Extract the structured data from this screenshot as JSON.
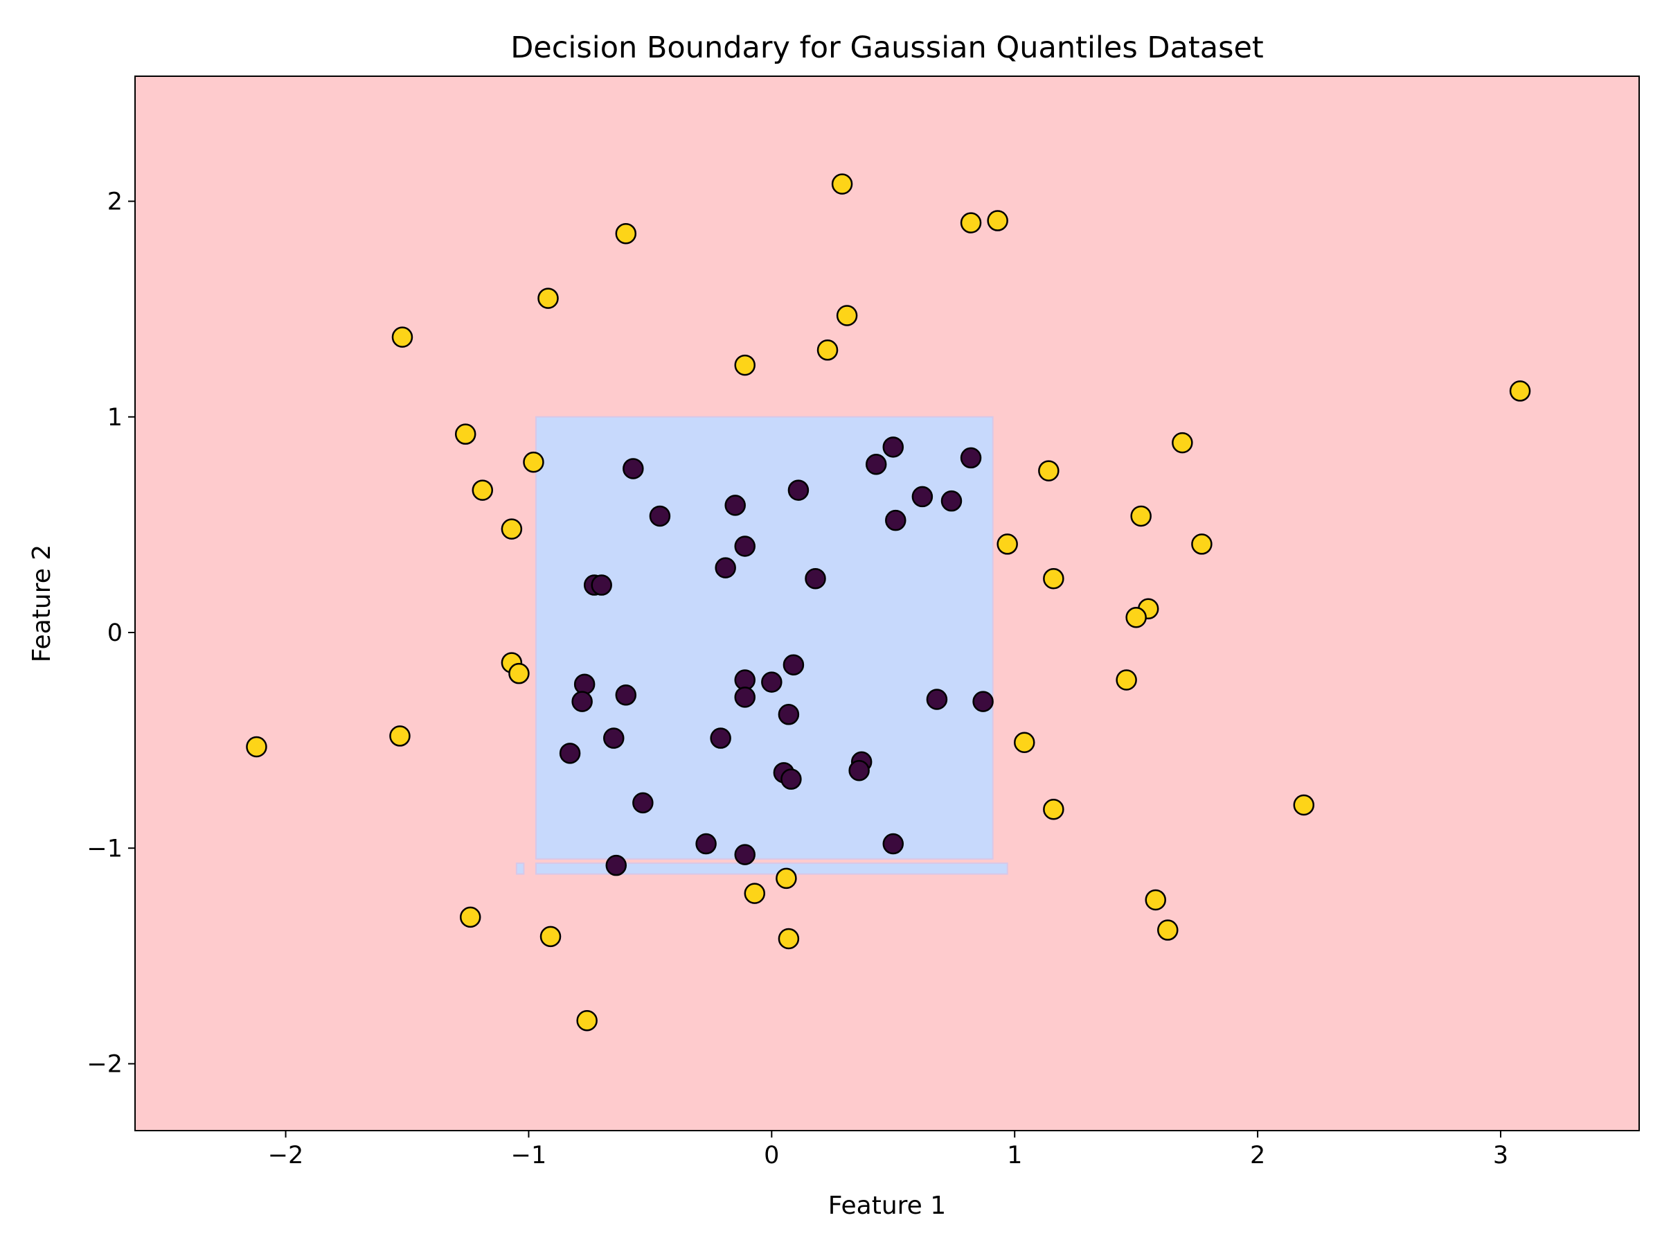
{
  "chart_data": {
    "type": "scatter",
    "title": "Decision Boundary for Gaussian Quantiles Dataset",
    "xlabel": "Feature 1",
    "ylabel": "Feature 2",
    "xlim": [
      -2.62,
      3.57
    ],
    "ylim": [
      -2.31,
      2.58
    ],
    "xticks": [
      -2,
      -1,
      0,
      1,
      2,
      3
    ],
    "yticks": [
      -2,
      -1,
      0,
      1,
      2
    ],
    "grid": false,
    "legend": "none",
    "colors": {
      "region_class_1": "#fecbcd",
      "region_class_0": "#c7d9fc",
      "class_0_marker": "#3b0a3d",
      "class_1_marker": "#fdd418",
      "marker_edge": "#000000"
    },
    "decision_regions": [
      {
        "class": 0,
        "x": [
          -0.97,
          0.91
        ],
        "y": [
          -1.05,
          1.0
        ]
      },
      {
        "class": 0,
        "x": [
          -1.05,
          -1.02
        ],
        "y": [
          -1.12,
          -1.07
        ]
      },
      {
        "class": 0,
        "x": [
          -0.97,
          0.97
        ],
        "y": [
          -1.12,
          -1.07
        ]
      }
    ],
    "series": [
      {
        "class": 0,
        "points": [
          [
            -0.57,
            0.76
          ],
          [
            -0.46,
            0.54
          ],
          [
            -0.15,
            0.59
          ],
          [
            0.11,
            0.66
          ],
          [
            0.43,
            0.78
          ],
          [
            0.5,
            0.86
          ],
          [
            0.82,
            0.81
          ],
          [
            0.62,
            0.63
          ],
          [
            0.74,
            0.61
          ],
          [
            0.51,
            0.52
          ],
          [
            -0.11,
            0.4
          ],
          [
            -0.19,
            0.3
          ],
          [
            0.18,
            0.25
          ],
          [
            -0.73,
            0.22
          ],
          [
            -0.7,
            0.22
          ],
          [
            -0.11,
            -0.22
          ],
          [
            0.09,
            -0.15
          ],
          [
            0.0,
            -0.23
          ],
          [
            -0.77,
            -0.24
          ],
          [
            -0.6,
            -0.29
          ],
          [
            -0.11,
            -0.3
          ],
          [
            -0.78,
            -0.32
          ],
          [
            0.68,
            -0.31
          ],
          [
            0.87,
            -0.32
          ],
          [
            0.07,
            -0.38
          ],
          [
            -0.65,
            -0.49
          ],
          [
            -0.21,
            -0.49
          ],
          [
            -0.83,
            -0.56
          ],
          [
            0.37,
            -0.6
          ],
          [
            0.36,
            -0.64
          ],
          [
            0.05,
            -0.65
          ],
          [
            0.08,
            -0.68
          ],
          [
            -0.53,
            -0.79
          ],
          [
            -0.27,
            -0.98
          ],
          [
            0.5,
            -0.98
          ],
          [
            -0.11,
            -1.03
          ],
          [
            -0.64,
            -1.08
          ]
        ]
      },
      {
        "class": 1,
        "points": [
          [
            0.29,
            2.08
          ],
          [
            0.82,
            1.9
          ],
          [
            0.93,
            1.91
          ],
          [
            -0.6,
            1.85
          ],
          [
            -0.92,
            1.55
          ],
          [
            0.31,
            1.47
          ],
          [
            -1.52,
            1.37
          ],
          [
            0.23,
            1.31
          ],
          [
            -0.11,
            1.24
          ],
          [
            3.08,
            1.12
          ],
          [
            -1.26,
            0.92
          ],
          [
            1.69,
            0.88
          ],
          [
            -0.98,
            0.79
          ],
          [
            1.14,
            0.75
          ],
          [
            -1.19,
            0.66
          ],
          [
            1.52,
            0.54
          ],
          [
            -1.07,
            0.48
          ],
          [
            0.97,
            0.41
          ],
          [
            1.77,
            0.41
          ],
          [
            1.16,
            0.25
          ],
          [
            1.55,
            0.11
          ],
          [
            1.5,
            0.07
          ],
          [
            -1.07,
            -0.14
          ],
          [
            -1.04,
            -0.19
          ],
          [
            1.46,
            -0.22
          ],
          [
            -1.53,
            -0.48
          ],
          [
            -2.12,
            -0.53
          ],
          [
            1.04,
            -0.51
          ],
          [
            1.16,
            -0.82
          ],
          [
            2.19,
            -0.8
          ],
          [
            0.06,
            -1.14
          ],
          [
            -0.07,
            -1.21
          ],
          [
            1.58,
            -1.24
          ],
          [
            -1.24,
            -1.32
          ],
          [
            -0.91,
            -1.41
          ],
          [
            0.07,
            -1.42
          ],
          [
            1.63,
            -1.38
          ],
          [
            -0.76,
            -1.8
          ]
        ]
      }
    ]
  }
}
